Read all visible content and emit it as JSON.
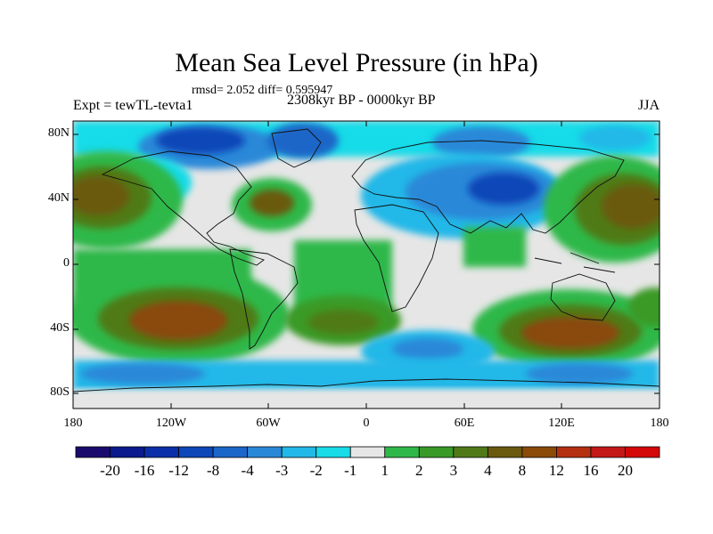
{
  "title": "Mean Sea Level Pressure (in hPa)",
  "stats": "rmsd= 2.052  diff= 0.595947",
  "experiment": "Expt = tewTL-tevta1",
  "period": "2308kyr BP - 0000kyr BP",
  "season": "JJA",
  "lat_labels": [
    "80N",
    "40N",
    "0",
    "40S",
    "80S"
  ],
  "lon_labels": [
    "180",
    "120W",
    "60W",
    "0",
    "60E",
    "120E",
    "180"
  ],
  "colorbar": {
    "labels": [
      "-20",
      "-16",
      "-12",
      "-8",
      "-4",
      "-3",
      "-2",
      "-1",
      "1",
      "2",
      "3",
      "4",
      "8",
      "12",
      "16",
      "20"
    ],
    "colors": [
      "#1a0a6e",
      "#0b1a8c",
      "#0a2fa8",
      "#0d47b8",
      "#1b66c8",
      "#2a88d8",
      "#22b8e8",
      "#18dbe8",
      "#e6e6e6",
      "#2fb84a",
      "#3a9a28",
      "#507a18",
      "#6a5a10",
      "#8a4a08",
      "#b53010",
      "#c41818",
      "#d40808"
    ]
  },
  "colors": {
    "ocean_neutral": "#e6e6e6",
    "coast": "#111111"
  }
}
